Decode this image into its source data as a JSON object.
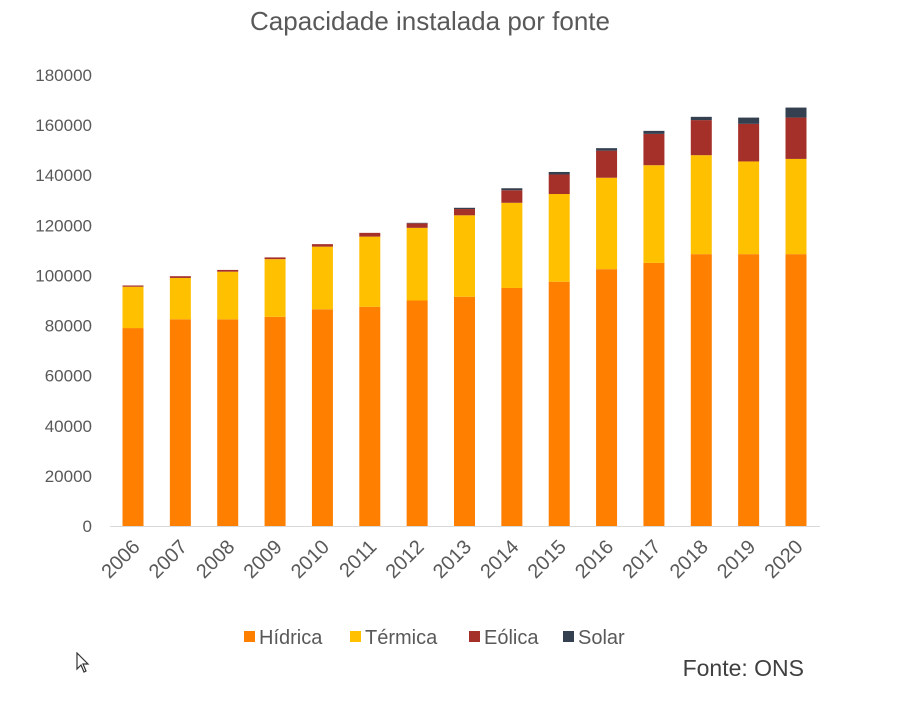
{
  "chart_data": {
    "type": "bar",
    "stacked": true,
    "title": "Capacidade instalada por fonte",
    "xlabel": "",
    "ylabel": "",
    "ylim": [
      0,
      180000
    ],
    "yticks": [
      0,
      20000,
      40000,
      60000,
      80000,
      100000,
      120000,
      140000,
      160000,
      180000
    ],
    "ytick_labels": [
      "0",
      "20000",
      "40000",
      "60000",
      "80000",
      "100000",
      "120000",
      "140000",
      "160000",
      "180000"
    ],
    "categories": [
      "2006",
      "2007",
      "2008",
      "2009",
      "2010",
      "2011",
      "2012",
      "2013",
      "2014",
      "2015",
      "2016",
      "2017",
      "2018",
      "2019",
      "2020"
    ],
    "series": [
      {
        "name": "Hídrica",
        "color": "#FF7F00",
        "values": [
          79000,
          82500,
          82500,
          83500,
          86500,
          87500,
          90000,
          91500,
          95000,
          97500,
          102500,
          105000,
          108500,
          108500,
          108500
        ]
      },
      {
        "name": "Térmica",
        "color": "#FFC000",
        "values": [
          16500,
          16500,
          19000,
          23000,
          25000,
          28000,
          29000,
          32500,
          34000,
          35000,
          36500,
          39000,
          39500,
          37000,
          38000
        ]
      },
      {
        "name": "Eólica",
        "color": "#A5302A",
        "values": [
          500,
          700,
          700,
          700,
          1000,
          1500,
          1800,
          2500,
          5000,
          7800,
          10800,
          12500,
          14000,
          15000,
          16500
        ]
      },
      {
        "name": "Solar",
        "color": "#343F4F",
        "values": [
          0,
          0,
          0,
          0,
          0,
          0,
          200,
          500,
          800,
          1000,
          1000,
          1200,
          1300,
          2500,
          4000
        ]
      }
    ],
    "grid": false,
    "legend_position": "bottom"
  },
  "source_text": "Fonte: ONS"
}
